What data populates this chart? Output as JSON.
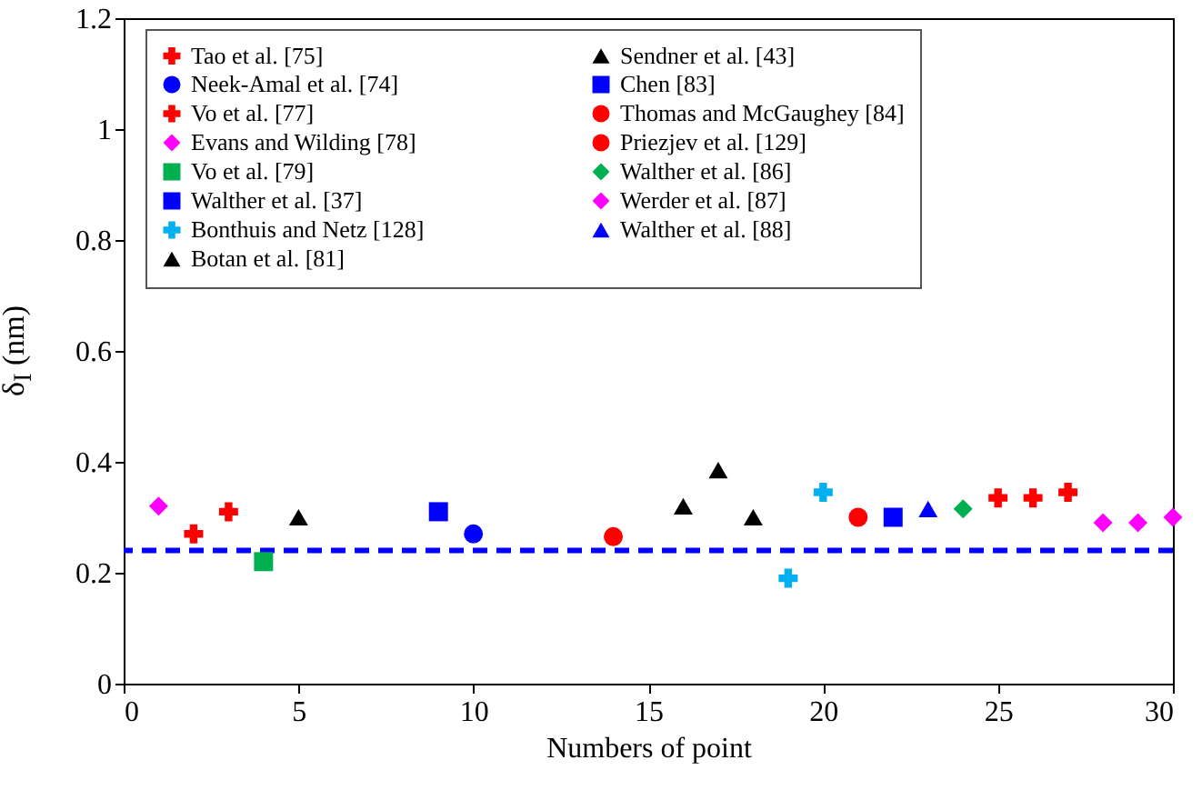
{
  "chart_data": {
    "type": "scatter",
    "xlabel": "Numbers of point",
    "ylabel": "δ$_{I}$ (nm)",
    "xlim": [
      0,
      30
    ],
    "xticks": [
      0,
      5,
      10,
      15,
      20,
      25,
      30
    ],
    "ylim": [
      0,
      1.2
    ],
    "yticks": [
      0,
      0.2,
      0.4,
      0.6,
      0.8,
      1,
      1.2
    ],
    "grid": false,
    "legend": "top",
    "series": [
      {
        "name": "Tao et al. [75]",
        "color": "#ff0000",
        "marker": "cross",
        "x": [
          25,
          26,
          27
        ],
        "values": [
          0.335,
          0.335,
          0.345
        ]
      },
      {
        "name": "Neek-Amal et al. [74]",
        "color": "#0000ff",
        "marker": "circle",
        "x": [
          10
        ],
        "values": [
          0.27
        ]
      },
      {
        "name": "Vo et al. [77]",
        "color": "#ff0000",
        "marker": "cross",
        "x": [
          2,
          3
        ],
        "values": [
          0.27,
          0.31
        ]
      },
      {
        "name": "Evans and Wilding [78]",
        "color": "#ff00ff",
        "marker": "diamond",
        "x": [
          28,
          29,
          30
        ],
        "values": [
          0.29,
          0.29,
          0.3
        ]
      },
      {
        "name": "Vo et al. [79]",
        "color": "#00b050",
        "marker": "square",
        "x": [
          4
        ],
        "values": [
          0.22
        ]
      },
      {
        "name": "Walther et al. [37]",
        "color": "#0000ff",
        "marker": "square",
        "x": [
          22
        ],
        "values": [
          0.3
        ]
      },
      {
        "name": "Bonthuis and Netz [128]",
        "color": "#00b0f0",
        "marker": "cross",
        "x": [
          19,
          20
        ],
        "values": [
          0.19,
          0.345
        ]
      },
      {
        "name": "Botan et al. [81]",
        "color": "#000000",
        "marker": "triangle",
        "x": [
          5
        ],
        "values": [
          0.3
        ]
      },
      {
        "name": "Sendner et al. [43]",
        "color": "#000000",
        "marker": "triangle",
        "x": [
          16,
          17,
          18
        ],
        "values": [
          0.32,
          0.385,
          0.3
        ]
      },
      {
        "name": "Chen [83]",
        "color": "#0000ff",
        "marker": "square",
        "x": [
          9
        ],
        "values": [
          0.31
        ]
      },
      {
        "name": "Thomas and McGaughey [84]",
        "color": "#ff0000",
        "marker": "circle",
        "x": [
          21
        ],
        "values": [
          0.3
        ]
      },
      {
        "name": "Priezjev et al. [129]",
        "color": "#ff0000",
        "marker": "circle",
        "x": [
          14
        ],
        "values": [
          0.265
        ]
      },
      {
        "name": "Walther et al. [86]",
        "color": "#00b050",
        "marker": "diamond",
        "x": [
          24
        ],
        "values": [
          0.315
        ]
      },
      {
        "name": "Werder et al. [87]",
        "color": "#ff00ff",
        "marker": "diamond",
        "x": [
          1
        ],
        "values": [
          0.32
        ]
      },
      {
        "name": "Walther et al. [88]",
        "color": "#0000ff",
        "marker": "triangle",
        "x": [
          23
        ],
        "values": [
          0.315
        ]
      }
    ],
    "ref_lines": [
      {
        "axis": "y",
        "value": 0.24,
        "color": "#0000ff",
        "line_style": "dashed"
      }
    ]
  }
}
